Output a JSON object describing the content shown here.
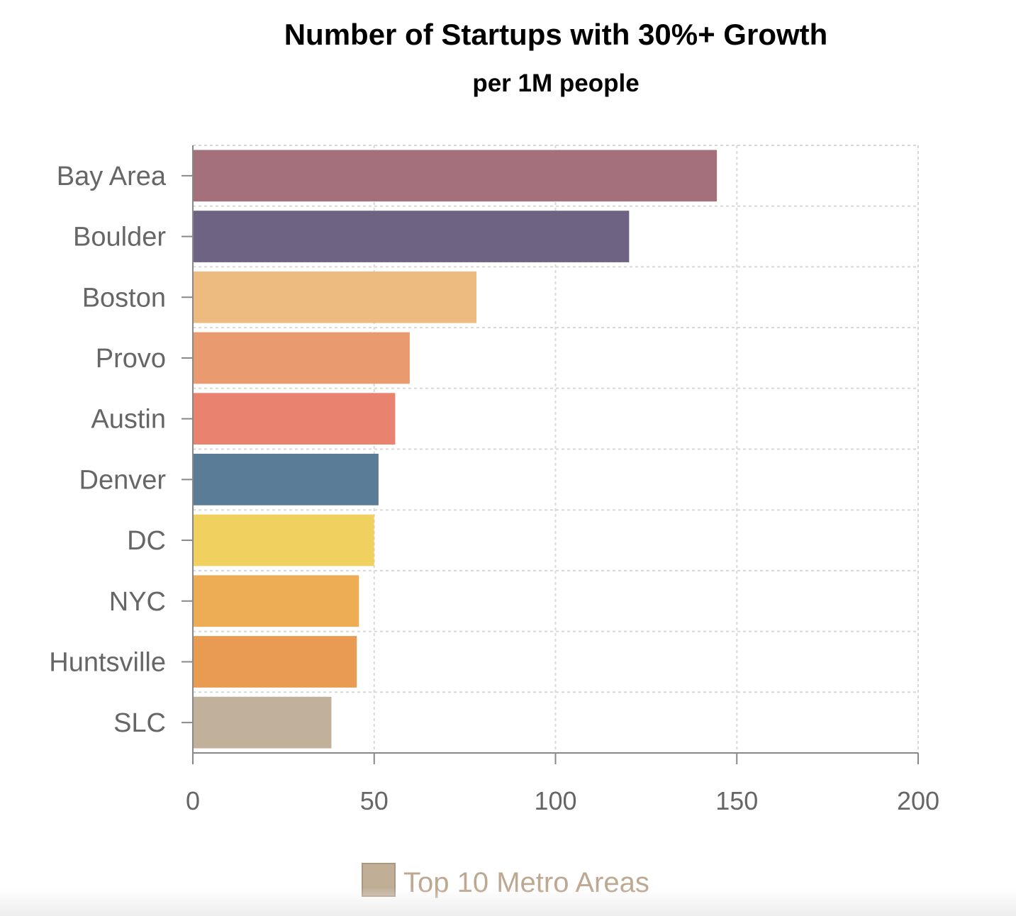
{
  "chart_data": {
    "type": "bar",
    "orientation": "horizontal",
    "title": "Number of Startups with 30%+ Growth",
    "subtitle": "per 1M people",
    "categories": [
      "Bay Area",
      "Boulder",
      "Boston",
      "Provo",
      "Austin",
      "Denver",
      "DC",
      "NYC",
      "Huntsville",
      "SLC"
    ],
    "series": [
      {
        "name": "Top 10 Metro Areas",
        "values": [
          144.5,
          120.3,
          78.2,
          59.8,
          55.8,
          51.2,
          50.0,
          45.8,
          45.2,
          38.2
        ]
      }
    ],
    "bar_colors": [
      "#a06b78",
      "#695e7e",
      "#ecb97b",
      "#e8976a",
      "#e87f6a",
      "#557893",
      "#efd05b",
      "#ecaa4e",
      "#e8984b",
      "#c0ae97"
    ],
    "xlim": [
      0,
      200
    ],
    "x_ticks": [
      "0",
      "50",
      "100",
      "150",
      "200"
    ],
    "x_tick_values": [
      0,
      50,
      100,
      150,
      200
    ],
    "xlabel": "",
    "ylabel": "",
    "grid": true,
    "legend": {
      "position": "bottom",
      "label": "Top 10 Metro Areas",
      "color": "#c0ae97",
      "text_color": "#bda891"
    }
  },
  "colors": {
    "axis": "#888888",
    "grid": "#d8d8d8",
    "label": "#666666"
  }
}
